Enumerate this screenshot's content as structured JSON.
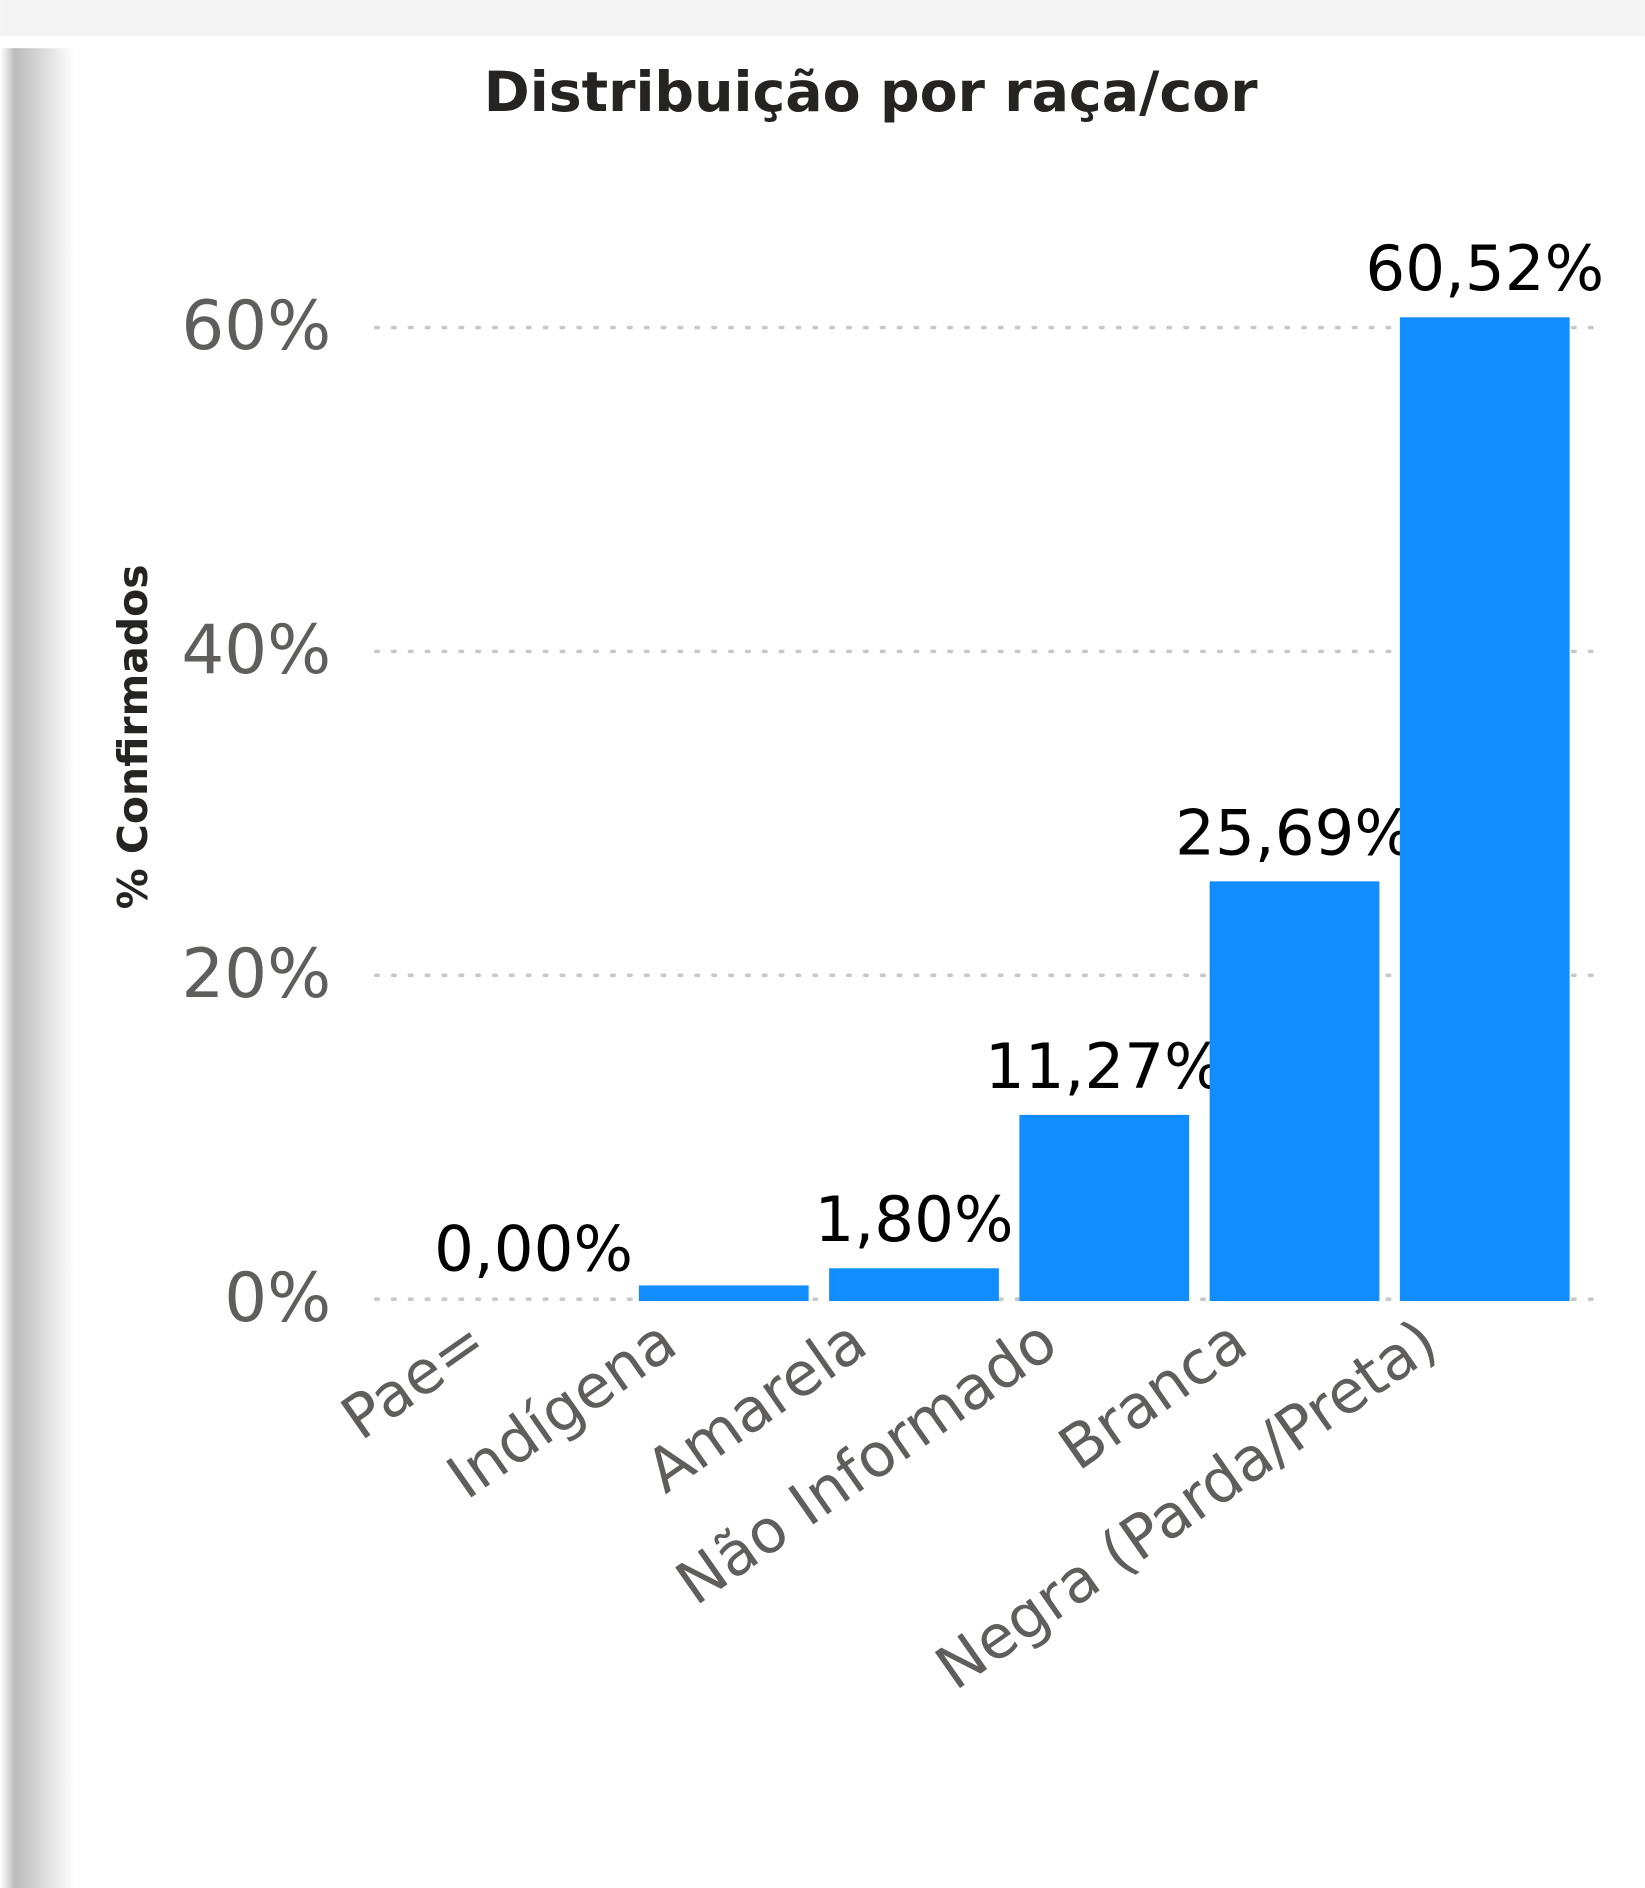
{
  "chart_data": {
    "type": "bar",
    "title": "Distribuição por raça/cor",
    "y_label": "% Confirmados",
    "categories": [
      "Pae=",
      "Indígena",
      "Amarela",
      "Não Informado",
      "Branca",
      "Negra (Parda/Preta)"
    ],
    "values": [
      0,
      0.74,
      1.8,
      11.27,
      25.69,
      60.52
    ],
    "value_labels": [
      "0,00%",
      null,
      "1,80%",
      "11,27%",
      "25,69%",
      "60,52%"
    ],
    "color": "#118dff",
    "ylim": [
      0,
      62
    ],
    "yticks": [
      {
        "value": 0,
        "label": "0%"
      },
      {
        "value": 20,
        "label": "20%"
      },
      {
        "value": 40,
        "label": "40%"
      },
      {
        "value": 60,
        "label": "60%"
      }
    ],
    "grid": true
  }
}
